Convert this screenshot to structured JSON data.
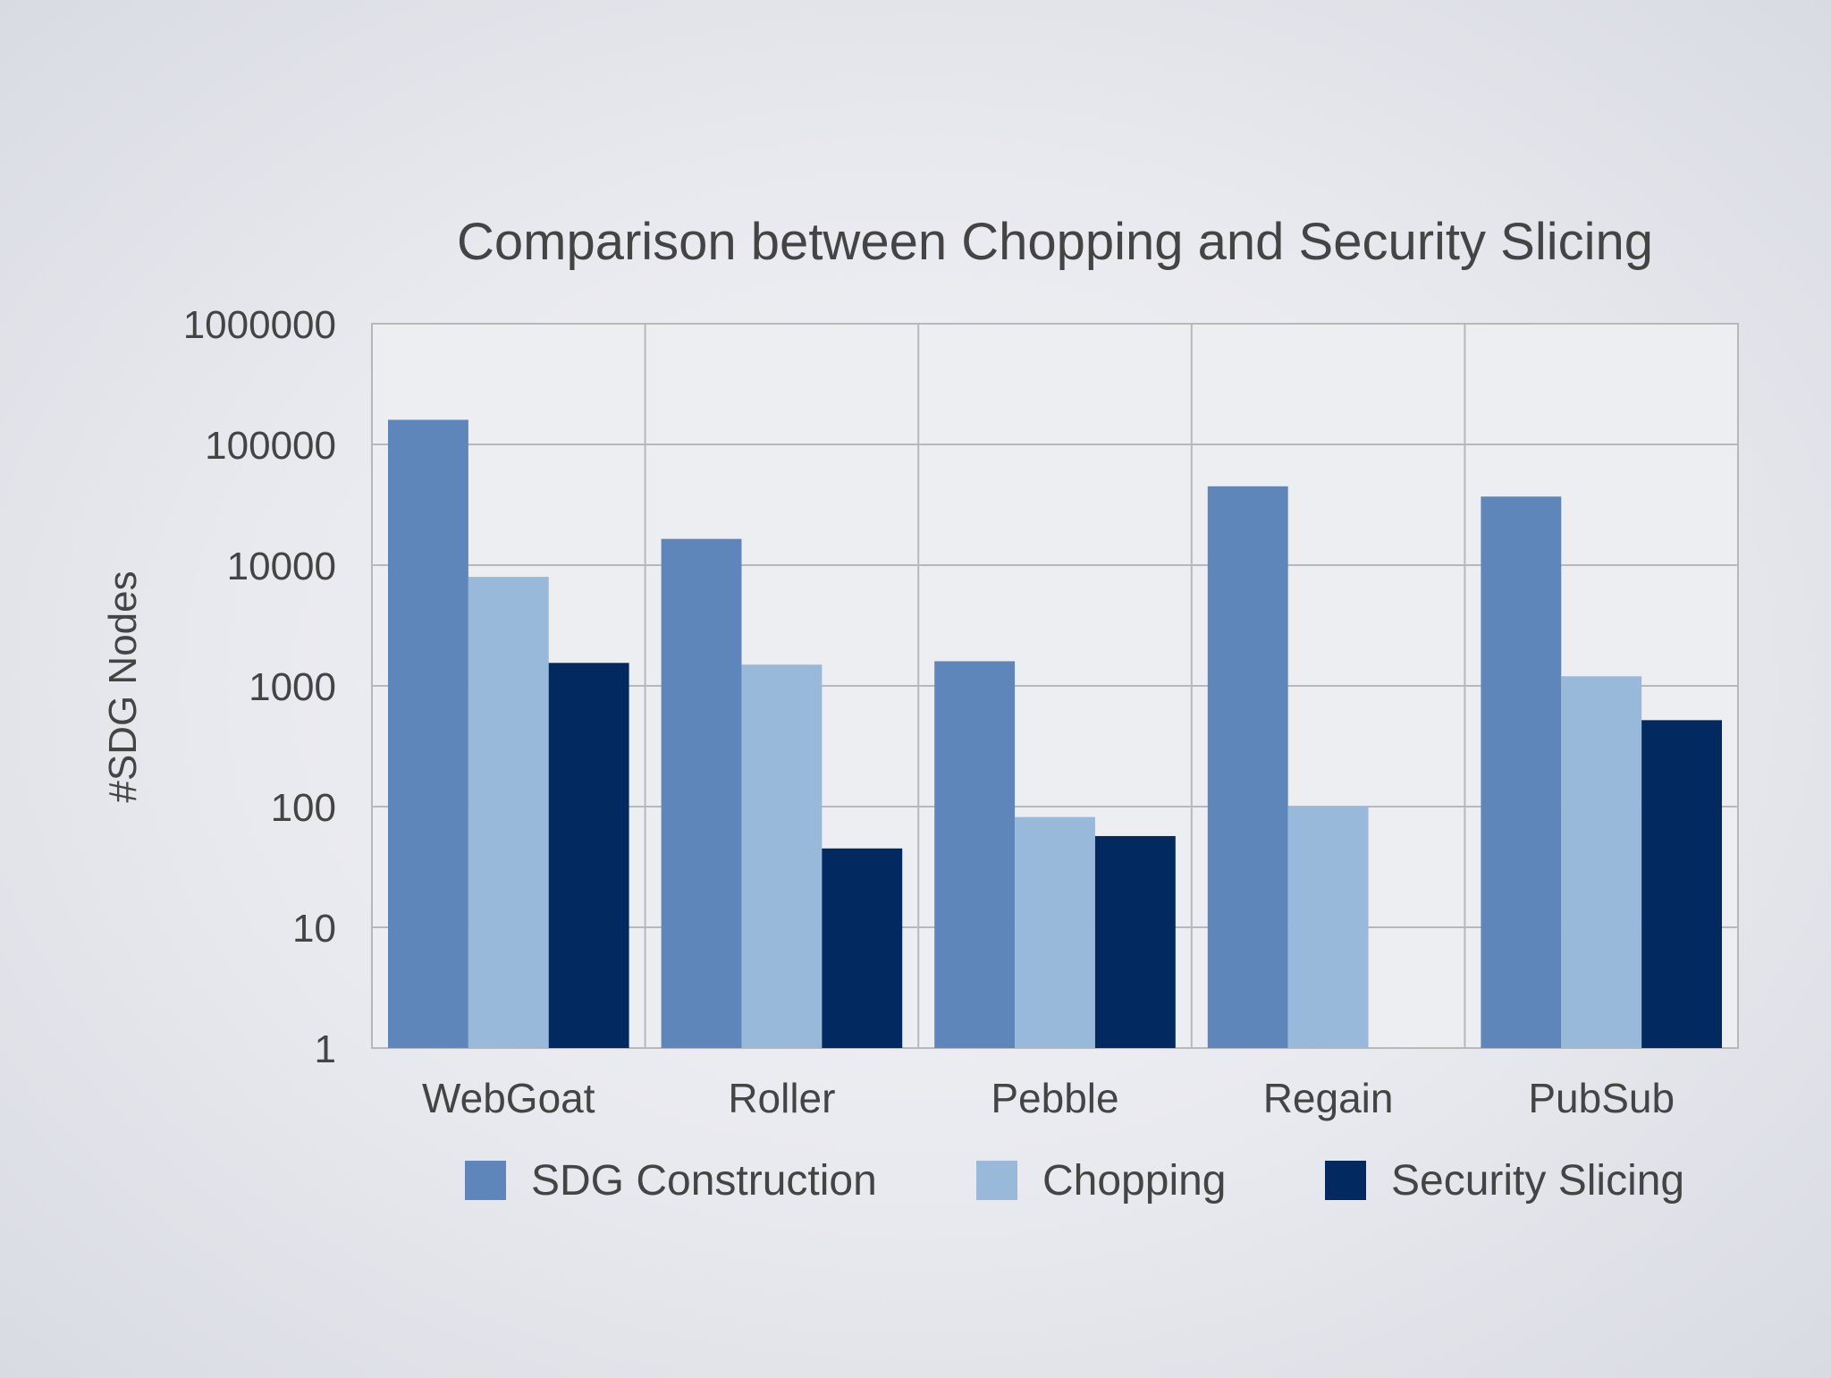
{
  "chart_data": {
    "type": "bar",
    "title": "Comparison between Chopping and Security Slicing",
    "ylabel": "#SDG Nodes",
    "xlabel": "",
    "yscale": "log",
    "ylim": [
      1,
      1000000
    ],
    "yticks": [
      "1",
      "10",
      "100",
      "1000",
      "10000",
      "100000",
      "1000000"
    ],
    "grid": true,
    "legend_position": "bottom",
    "categories": [
      "WebGoat",
      "Roller",
      "Pebble",
      "Regain",
      "PubSub"
    ],
    "series": [
      {
        "name": "SDG Construction",
        "color": "#5f86ba",
        "values": [
          160000,
          16500,
          1600,
          45000,
          37000
        ]
      },
      {
        "name": "Chopping",
        "color": "#99b9db",
        "values": [
          8000,
          1500,
          82,
          100,
          1200
        ]
      },
      {
        "name": "Security Slicing",
        "color": "#022a60",
        "values": [
          1550,
          45,
          57,
          null,
          520
        ]
      }
    ]
  },
  "colors": {
    "text": "#444444",
    "grid": "#b8b8bc",
    "plot_background": "#edeef2"
  }
}
